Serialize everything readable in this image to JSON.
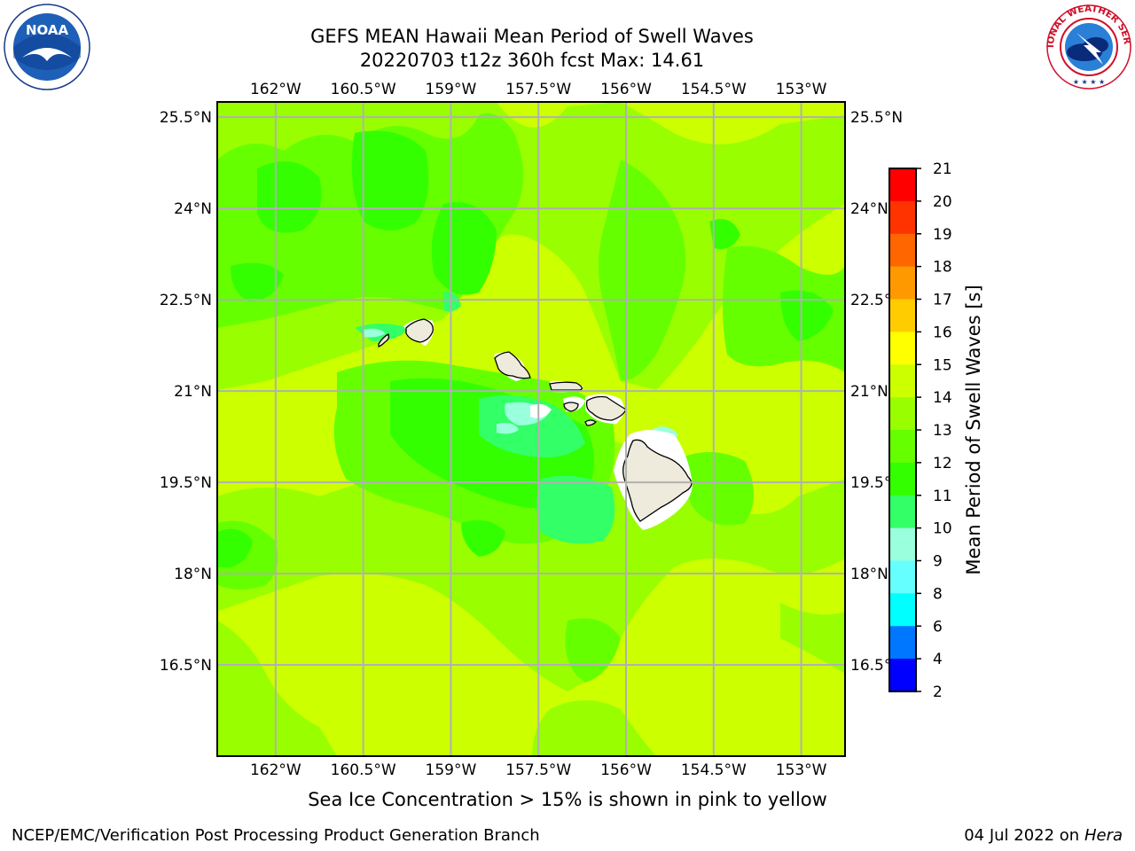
{
  "header": {
    "title_line1": "GEFS MEAN Hawaii Mean Period of Swell Waves",
    "title_line2": "20220703 t12z 360h fcst   Max: 14.61"
  },
  "map": {
    "lon_ticks": [
      "162°W",
      "160.5°W",
      "159°W",
      "157.5°W",
      "156°W",
      "154.5°W",
      "153°W"
    ],
    "lat_ticks": [
      "25.5°N",
      "24°N",
      "22.5°N",
      "21°N",
      "19.5°N",
      "18°N",
      "16.5°N"
    ],
    "lon_values": [
      -162,
      -160.5,
      -159,
      -157.5,
      -156,
      -154.5,
      -153
    ],
    "lat_values": [
      25.5,
      24,
      22.5,
      21,
      19.5,
      18,
      16.5
    ],
    "lon_range": [
      -163,
      -152.25
    ],
    "lat_range": [
      15,
      25.75
    ],
    "ocean_base_color": "#ccff00",
    "land_color": "#eeeadc",
    "grid_color": "#b0b0b0"
  },
  "colorbar": {
    "label": "Mean Period of Swell Waves [s]",
    "ticks": [
      "21",
      "20",
      "19",
      "18",
      "17",
      "16",
      "15",
      "14",
      "13",
      "12",
      "11",
      "10",
      "9",
      "8",
      "6",
      "4",
      "2"
    ],
    "colors": [
      "#ff0000",
      "#ff3300",
      "#ff6600",
      "#ff9900",
      "#ffcc00",
      "#ffff00",
      "#ccff00",
      "#99ff00",
      "#66ff00",
      "#33ff00",
      "#33ff66",
      "#99ffdd",
      "#66ffff",
      "#00ffff",
      "#0077ff",
      "#0000ff"
    ]
  },
  "note": "Sea Ice Concentration > 15% is shown in pink to yellow",
  "footer": {
    "left": "NCEP/EMC/Verification Post Processing Product Generation Branch",
    "right_date": "04 Jul 2022 on ",
    "right_host": "Hera"
  },
  "logos": {
    "noaa_text": "NOAA",
    "nws_text": "NATIONAL WEATHER SERVICE"
  }
}
